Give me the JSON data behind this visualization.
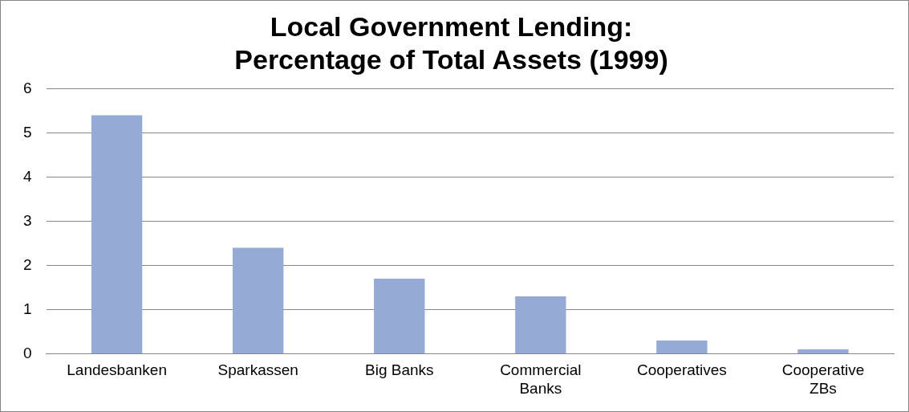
{
  "chart_data": {
    "type": "bar",
    "title": "Local Government Lending:\nPercentage of Total Assets (1999)",
    "categories": [
      "Landesbanken",
      "Sparkassen",
      "Big Banks",
      "Commercial Banks",
      "Cooperatives",
      "Cooperative ZBs"
    ],
    "values": [
      5.4,
      2.4,
      1.7,
      1.3,
      0.3,
      0.1
    ],
    "color": "#95abd5",
    "ylim": [
      0,
      6
    ],
    "yticks": [
      0,
      1,
      2,
      3,
      4,
      5,
      6
    ],
    "grid": "y",
    "legend": false
  }
}
